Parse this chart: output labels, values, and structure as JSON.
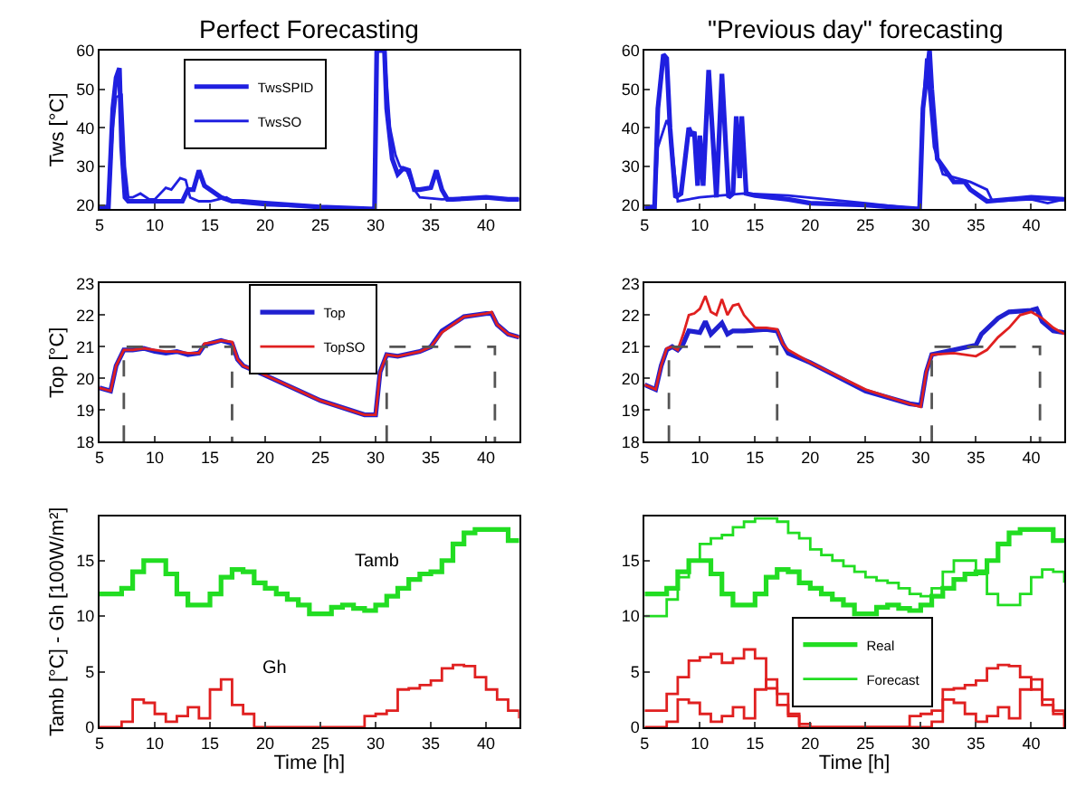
{
  "chart_data": [
    {
      "type": "line",
      "title": "Perfect Forecasting",
      "ylabel": "Tws [°C]",
      "xlim": [
        5,
        43
      ],
      "xticks": [
        5,
        10,
        15,
        20,
        25,
        30,
        35,
        40
      ],
      "ylim": [
        19,
        60
      ],
      "yticks": [
        20,
        30,
        40,
        50,
        60
      ],
      "grid": false,
      "legend": "top left",
      "series": [
        {
          "name": "TwsSPID",
          "color": "#1f1fe0",
          "x": [
            5,
            5.8,
            6.2,
            6.5,
            6.8,
            7.0,
            7.3,
            7.6,
            8,
            9,
            10,
            11,
            12,
            12.5,
            13,
            13.5,
            14,
            14.5,
            15,
            16,
            17,
            18,
            20,
            25,
            29.9,
            30.1,
            30.5,
            30.8,
            31,
            31.5,
            32,
            32.5,
            33,
            33.5,
            34,
            35,
            35.5,
            36,
            36.5,
            37,
            40,
            42,
            43
          ],
          "values": [
            19.5,
            19.5,
            45,
            53,
            55.5,
            35,
            22,
            21,
            21,
            21,
            21,
            21,
            21,
            21,
            24,
            24,
            29,
            25,
            24,
            22,
            21,
            21,
            20.5,
            19.5,
            19,
            60,
            60,
            60,
            45,
            32,
            28,
            29.5,
            29,
            24,
            24,
            24.5,
            29,
            24,
            21.5,
            21.5,
            22,
            21.5,
            21.5
          ]
        },
        {
          "name": "TwsSO",
          "color": "#1f1fe0",
          "x": [
            5,
            5.8,
            6.2,
            6.5,
            7.0,
            7.3,
            7.6,
            8,
            8.7,
            9.5,
            10,
            11,
            11.5,
            12.3,
            12.8,
            13.2,
            14,
            15,
            16.5,
            17,
            18,
            20,
            25,
            29.9,
            30.1,
            30.5,
            30.8,
            31.3,
            31.8,
            32.2,
            32.8,
            33.5,
            34,
            36,
            40,
            43
          ],
          "values": [
            19.5,
            19.5,
            40,
            48,
            48.5,
            30,
            22,
            22,
            23,
            21.5,
            21.5,
            24.5,
            24,
            27,
            26.5,
            22,
            21,
            21,
            22,
            21,
            20.5,
            20,
            19.5,
            19,
            60,
            60,
            60,
            40,
            33,
            30,
            29,
            24,
            22,
            21.5,
            22,
            21.5
          ]
        }
      ]
    },
    {
      "type": "line",
      "title": "\"Previous day\" forecasting",
      "xlim": [
        5,
        43
      ],
      "xticks": [
        5,
        10,
        15,
        20,
        25,
        30,
        35,
        40
      ],
      "ylim": [
        19,
        60
      ],
      "yticks": [
        20,
        30,
        40,
        50,
        60
      ],
      "grid": false,
      "series": [
        {
          "color": "#1f1fe0",
          "x": [
            5,
            5.9,
            6.2,
            6.7,
            7.0,
            7.3,
            7.8,
            8.3,
            9,
            9.3,
            9.5,
            9.8,
            10,
            10.3,
            10.8,
            11.5,
            12,
            12.6,
            13,
            13.3,
            13.6,
            13.8,
            14.2,
            15,
            18,
            20,
            25,
            29.9,
            30.2,
            30.8,
            31,
            31.5,
            33,
            34,
            34.5,
            36,
            40,
            43
          ],
          "values": [
            19.5,
            19.5,
            45,
            59,
            58,
            40,
            22,
            23,
            40,
            38,
            39,
            25,
            38,
            25,
            55,
            22,
            54,
            22,
            23,
            43,
            27,
            43,
            23,
            22.5,
            21.5,
            20.5,
            20,
            19,
            45,
            60,
            50,
            32,
            26,
            26,
            24,
            21,
            22,
            21.5
          ]
        },
        {
          "color": "#1f1fe0",
          "x": [
            5,
            5.9,
            6.2,
            7,
            7.3,
            8,
            10,
            14,
            18,
            25,
            29.9,
            30.2,
            30.5,
            31.2,
            32,
            34.5,
            36,
            36.5,
            40,
            41.5,
            43
          ],
          "values": [
            19.5,
            19.5,
            35,
            42,
            40,
            21,
            22,
            23,
            22.5,
            20.5,
            19,
            45,
            58,
            35,
            28,
            26,
            24,
            21,
            21.5,
            20.5,
            21.5
          ]
        }
      ]
    },
    {
      "type": "line",
      "ylabel": "Top [°C]",
      "xlim": [
        5,
        43
      ],
      "xticks": [
        5,
        10,
        15,
        20,
        25,
        30,
        35,
        40
      ],
      "ylim": [
        18,
        23
      ],
      "yticks": [
        18,
        19,
        20,
        21,
        22,
        23
      ],
      "grid": false,
      "legend": "top",
      "series": [
        {
          "name": "Top",
          "color": "#2020d0",
          "x": [
            5,
            6,
            6.5,
            7.2,
            8,
            9,
            10,
            11,
            12,
            13,
            14,
            14.5,
            15.5,
            16,
            17,
            17.5,
            18,
            20,
            25,
            29,
            30,
            30.4,
            31,
            32,
            34,
            35,
            36,
            38,
            40,
            40.5,
            41,
            42,
            43
          ],
          "values": [
            19.7,
            19.6,
            20.4,
            20.9,
            20.9,
            20.95,
            20.85,
            20.8,
            20.85,
            20.75,
            20.8,
            21.05,
            21.15,
            21.2,
            21.1,
            20.6,
            20.4,
            20.1,
            19.3,
            18.85,
            18.85,
            20.2,
            20.75,
            20.7,
            20.85,
            21.0,
            21.5,
            21.95,
            22.05,
            22.05,
            21.7,
            21.4,
            21.3
          ]
        },
        {
          "name": "TopSO",
          "color": "#e02020",
          "x": [
            5,
            6,
            6.5,
            7.2,
            8,
            9,
            10,
            11,
            12,
            13,
            14,
            14.5,
            15.5,
            16,
            17,
            17.5,
            18,
            20,
            25,
            29,
            30,
            30.4,
            31,
            32,
            34,
            35,
            36,
            38,
            40,
            40.5,
            41,
            42,
            43
          ],
          "values": [
            19.7,
            19.6,
            20.4,
            20.9,
            20.9,
            20.95,
            20.9,
            20.85,
            20.85,
            20.8,
            20.8,
            21.1,
            21.15,
            21.2,
            21.15,
            20.6,
            20.4,
            20.1,
            19.3,
            18.85,
            18.85,
            20.2,
            20.75,
            20.7,
            20.85,
            21.0,
            21.45,
            21.95,
            22.05,
            22.1,
            21.7,
            21.4,
            21.3
          ]
        },
        {
          "color": "#555555",
          "line_style": "dashed",
          "x": [
            7.2,
            7.2,
            17,
            17,
            24,
            31,
            31,
            40.8,
            40.8
          ],
          "values": [
            18,
            21,
            21,
            18,
            null,
            18,
            21,
            21,
            18
          ]
        }
      ]
    },
    {
      "type": "line",
      "xlim": [
        5,
        43
      ],
      "xticks": [
        5,
        10,
        15,
        20,
        25,
        30,
        35,
        40
      ],
      "ylim": [
        18,
        23
      ],
      "yticks": [
        18,
        19,
        20,
        21,
        22,
        23
      ],
      "grid": false,
      "series": [
        {
          "color": "#2020d0",
          "x": [
            5,
            6,
            6.5,
            7,
            7.5,
            8,
            8.5,
            9,
            10,
            10.5,
            11,
            12,
            12.5,
            13,
            14,
            16,
            17,
            17.5,
            18,
            20,
            25,
            29,
            30,
            30.5,
            31,
            33,
            35,
            35.5,
            37,
            38,
            40,
            40.5,
            41,
            42,
            43
          ],
          "values": [
            19.8,
            19.65,
            20.4,
            20.9,
            21.0,
            20.9,
            21.1,
            21.5,
            21.45,
            21.8,
            21.4,
            21.75,
            21.4,
            21.5,
            21.5,
            21.55,
            21.5,
            21.1,
            20.8,
            20.5,
            19.6,
            19.2,
            19.15,
            20.2,
            20.75,
            20.9,
            21.05,
            21.4,
            21.9,
            22.1,
            22.15,
            22.2,
            21.8,
            21.5,
            21.45
          ]
        },
        {
          "color": "#e02020",
          "x": [
            5,
            6,
            6.5,
            7,
            7.5,
            8,
            8.5,
            9,
            9.5,
            10,
            10.5,
            11,
            11.5,
            12,
            12.5,
            13,
            13.5,
            14,
            15,
            16,
            17,
            17.5,
            18,
            20,
            25,
            29,
            30,
            30.5,
            31,
            33,
            35,
            36,
            37,
            38,
            39,
            40,
            41,
            42,
            43
          ],
          "values": [
            19.8,
            19.65,
            20.4,
            20.95,
            21.0,
            20.9,
            21.4,
            22.0,
            22.05,
            22.2,
            22.6,
            22.1,
            22.0,
            22.5,
            22.0,
            22.3,
            22.35,
            22.0,
            21.6,
            21.6,
            21.55,
            21.1,
            20.9,
            20.5,
            19.65,
            19.2,
            19.1,
            20.2,
            20.75,
            20.8,
            20.7,
            20.9,
            21.3,
            21.6,
            22.0,
            22.1,
            21.9,
            21.6,
            21.4
          ]
        },
        {
          "color": "#555555",
          "line_style": "dashed",
          "x": [
            7.2,
            7.2,
            17,
            17,
            24,
            31,
            31,
            40.8,
            40.8
          ],
          "values": [
            18,
            21,
            21,
            18,
            null,
            18,
            21,
            21,
            18
          ]
        }
      ]
    },
    {
      "type": "step",
      "ylabel": "Tamb [°C] - Gh [100W/m²]",
      "xlabel": "Time [h]",
      "xlim": [
        5,
        43
      ],
      "xticks": [
        5,
        10,
        15,
        20,
        25,
        30,
        35,
        40
      ],
      "ylim": [
        0,
        19
      ],
      "yticks": [
        0,
        5,
        10,
        15
      ],
      "grid": false,
      "x": [
        5,
        6,
        7,
        8,
        9,
        10,
        11,
        12,
        13,
        14,
        15,
        16,
        17,
        18,
        19,
        20,
        21,
        22,
        23,
        24,
        25,
        26,
        27,
        28,
        29,
        30,
        31,
        32,
        33,
        34,
        35,
        36,
        37,
        38,
        39,
        40,
        41,
        42,
        43
      ],
      "annotations": [
        "Tamb",
        "Gh"
      ],
      "series": [
        {
          "color": "#22dd22",
          "values": [
            12,
            12,
            12.5,
            14,
            15,
            15,
            13.8,
            12,
            11,
            11,
            12,
            13.5,
            14.2,
            14,
            13,
            12.5,
            12,
            11.5,
            11,
            10.2,
            10.2,
            10.8,
            11,
            10.7,
            10.5,
            11,
            11.8,
            12.5,
            13.3,
            13.8,
            14,
            15,
            16.5,
            17.5,
            17.8,
            17.8,
            17.8,
            16.8,
            16.8
          ]
        },
        {
          "color": "#e02020",
          "values": [
            0,
            0,
            0.5,
            2.5,
            2.2,
            1.2,
            0.5,
            1,
            1.8,
            0.8,
            3.4,
            4.3,
            2,
            1.2,
            0,
            0,
            0,
            0,
            0,
            0,
            0,
            0,
            0,
            0,
            1,
            1.2,
            1.5,
            3.4,
            3.5,
            3.8,
            4.2,
            5.3,
            5.6,
            5.5,
            4.5,
            3.4,
            2.5,
            1.5,
            0.8
          ]
        }
      ]
    },
    {
      "type": "step",
      "xlabel": "Time [h]",
      "xlim": [
        5,
        43
      ],
      "xticks": [
        5,
        10,
        15,
        20,
        25,
        30,
        35,
        40
      ],
      "ylim": [
        0,
        19
      ],
      "yticks": [
        0,
        5,
        10,
        15
      ],
      "grid": false,
      "legend": "center",
      "x": [
        5,
        6,
        7,
        8,
        9,
        10,
        11,
        12,
        13,
        14,
        15,
        16,
        17,
        18,
        19,
        20,
        21,
        22,
        23,
        24,
        25,
        26,
        27,
        28,
        29,
        30,
        31,
        32,
        33,
        34,
        35,
        36,
        37,
        38,
        39,
        40,
        41,
        42,
        43
      ],
      "series": [
        {
          "name": "Real",
          "color": "#22dd22",
          "values": [
            12,
            12,
            12.5,
            14,
            15,
            15,
            13.8,
            12,
            11,
            11,
            12,
            13.5,
            14.2,
            14,
            13,
            12.5,
            12,
            11.5,
            11,
            10.2,
            10.2,
            10.8,
            11,
            10.7,
            10.5,
            11,
            11.8,
            12.5,
            13.3,
            13.8,
            14,
            15,
            16.5,
            17.5,
            17.8,
            17.8,
            17.8,
            16.8,
            16.8
          ]
        },
        {
          "name": "Forecast",
          "color": "#22dd22",
          "values": [
            10,
            10,
            11.5,
            13.5,
            15,
            16.5,
            17,
            17.3,
            18,
            18.5,
            18.8,
            18.8,
            18.5,
            17.5,
            17,
            16,
            15.5,
            15,
            14.5,
            14,
            13.5,
            13.2,
            13,
            12.5,
            12,
            11.8,
            12.5,
            14,
            15,
            15,
            13.8,
            12,
            11,
            11,
            12,
            13.5,
            14.2,
            14,
            13
          ]
        },
        {
          "color": "#e02020",
          "values": [
            0,
            0,
            0.5,
            2.5,
            2.2,
            1.2,
            0.5,
            1,
            1.8,
            0.8,
            3.4,
            4.3,
            2,
            1.2,
            0,
            0,
            0,
            0,
            0,
            0,
            0,
            0,
            0,
            0,
            1,
            1.2,
            1.5,
            3.4,
            3.5,
            3.8,
            4.2,
            5.3,
            5.6,
            5.5,
            4.5,
            3.4,
            2.5,
            1.5,
            0.8
          ]
        },
        {
          "color": "#e02020",
          "values": [
            1.5,
            1.5,
            3,
            4.5,
            6,
            6.3,
            6.6,
            5.8,
            6.2,
            7,
            6.2,
            3.5,
            3,
            1,
            0.3,
            0,
            0,
            0,
            0,
            0,
            0,
            0,
            0,
            0,
            0,
            0,
            0.5,
            2.5,
            2.2,
            1.2,
            0.5,
            1,
            1.8,
            0.8,
            3.4,
            4.3,
            2,
            1.2,
            0
          ]
        }
      ]
    }
  ]
}
